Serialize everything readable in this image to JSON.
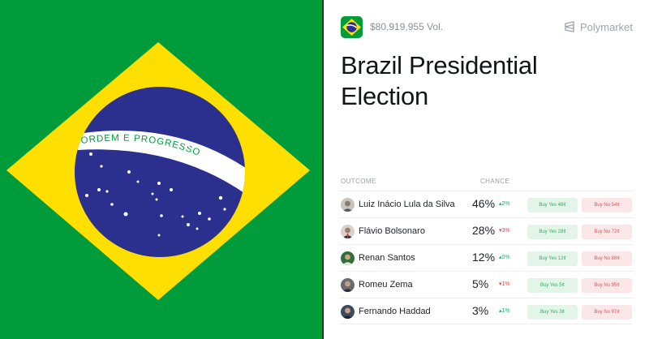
{
  "colors": {
    "flag_green": "#009c3b",
    "flag_yellow": "#ffdf00",
    "flag_blue": "#2b2f8e",
    "yes": "#36a85f",
    "no": "#e05555"
  },
  "flag": {
    "motto": "ORDEM E PROGRESSO"
  },
  "header": {
    "volume": "$80,919,955 Vol.",
    "brand": "Polymarket",
    "brand_icon": "polymarket-logo-icon"
  },
  "market": {
    "title": "Brazil Presidential Election"
  },
  "table": {
    "col_outcome": "OUTCOME",
    "col_chance": "CHANCE",
    "rows": [
      {
        "name": "Luiz Inácio Lula da Silva",
        "chance": "46%",
        "delta": "▴2%",
        "yes": "Buy Yes 46¢",
        "no": "Buy No 54¢"
      },
      {
        "name": "Flávio Bolsonaro",
        "chance": "28%",
        "delta": "▾3%",
        "yes": "Buy Yes 28¢",
        "no": "Buy No 72¢"
      },
      {
        "name": "Renan Santos",
        "chance": "12%",
        "delta": "▴0%",
        "yes": "Buy Yes 12¢",
        "no": "Buy No 88¢"
      },
      {
        "name": "Romeu Zema",
        "chance": "5%",
        "delta": "▾1%",
        "yes": "Buy Yes 5¢",
        "no": "Buy No 95¢"
      },
      {
        "name": "Fernando Haddad",
        "chance": "3%",
        "delta": "▴1%",
        "yes": "Buy Yes 3¢",
        "no": "Buy No 97¢"
      }
    ]
  }
}
